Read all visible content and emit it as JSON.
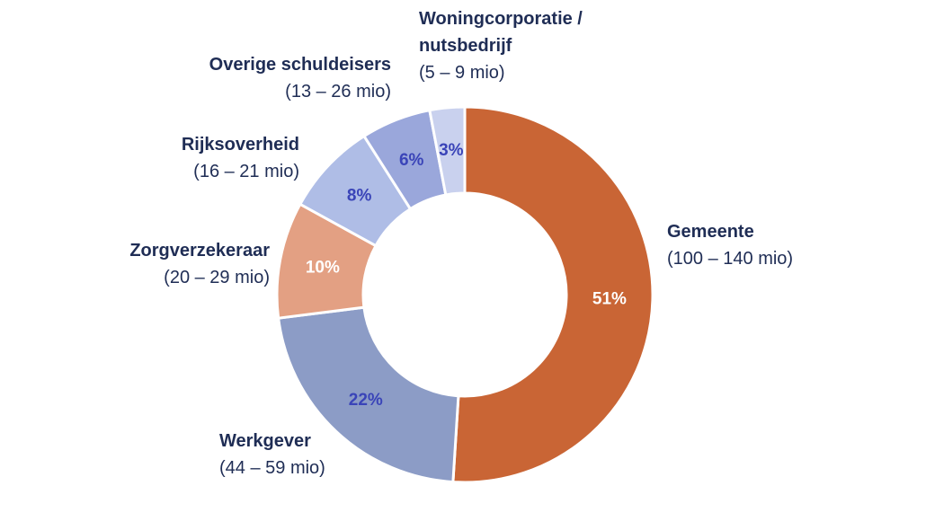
{
  "chart_data": {
    "type": "pie",
    "variant": "donut",
    "title": "",
    "legend": "none",
    "slices": [
      {
        "key": "gemeente",
        "name_lines": [
          "Gemeente"
        ],
        "range": "(100 – 140 mio)",
        "value": 51,
        "label": "51%",
        "color": "#c96535",
        "label_color": "#ffffff"
      },
      {
        "key": "werkgever",
        "name_lines": [
          "Werkgever"
        ],
        "range": "(44 – 59 mio)",
        "value": 22,
        "label": "22%",
        "color": "#8c9cc6",
        "label_color": "#3a44b8"
      },
      {
        "key": "zorgverzekeraar",
        "name_lines": [
          "Zorgverzekeraar"
        ],
        "range": "(20 – 29 mio)",
        "value": 10,
        "label": "10%",
        "color": "#e3a083",
        "label_color": "#ffffff"
      },
      {
        "key": "rijksoverheid",
        "name_lines": [
          "Rijksoverheid"
        ],
        "range": "(16 – 21 mio)",
        "value": 8,
        "label": "8%",
        "color": "#afbde6",
        "label_color": "#3a44b8"
      },
      {
        "key": "overige-schuldeisers",
        "name_lines": [
          "Overige schuldeisers"
        ],
        "range": "(13 – 26 mio)",
        "value": 6,
        "label": "6%",
        "color": "#9aa7db",
        "label_color": "#3a44b8"
      },
      {
        "key": "woningcorporatie-nutsbedrijf",
        "name_lines": [
          "Woningcorporatie /",
          "nutsbedrijf"
        ],
        "range": "(5 – 9 mio)",
        "value": 3,
        "label": "3%",
        "color": "#c9d1ee",
        "label_color": "#3a44b8"
      }
    ]
  }
}
